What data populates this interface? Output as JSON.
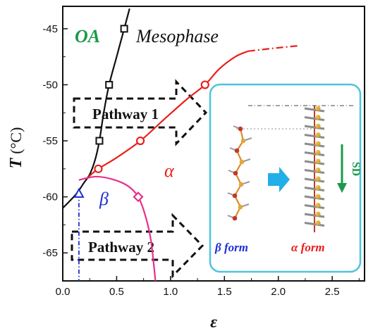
{
  "chart_data": {
    "type": "line",
    "xlabel": "ε",
    "ylabel": "T",
    "ylabel_unit": "(°C)",
    "xlim": [
      0,
      2.8
    ],
    "ylim": [
      -67.5,
      -43
    ],
    "x_ticks": [
      0.0,
      0.5,
      1.0,
      1.5,
      2.0,
      2.5
    ],
    "x_tick_labels": [
      "0.0",
      "0.5",
      "1.0",
      "1.5",
      "2.0",
      "2.5"
    ],
    "y_ticks": [
      -45,
      -50,
      -55,
      -60,
      -65
    ],
    "y_tick_labels": [
      "-45",
      "-50",
      "-55",
      "-60",
      "-65"
    ],
    "regions": {
      "oa": "OA",
      "mesophase": "Mesophase",
      "alpha": "α",
      "beta": "β"
    },
    "pathways": [
      "Pathway 1",
      "Pathway 2"
    ],
    "colors": {
      "black_curve": "#111111",
      "red_curve": "#e8201c",
      "pink_curve": "#e82f8a",
      "blue_marker": "#1f2fd8",
      "oa": "#1a9a4a",
      "inset_border": "#4fc3dd",
      "arrow_cyan": "#22aee8",
      "sd_green": "#1a9a4a"
    },
    "series": [
      {
        "color": "#111111",
        "marker": "square",
        "x": [
          0.34,
          0.43,
          0.57
        ],
        "y": [
          -55.0,
          -50.0,
          -45.0
        ],
        "curve": [
          [
            0.0,
            -61.0
          ],
          [
            0.12,
            -59.8
          ],
          [
            0.2,
            -58.7
          ],
          [
            0.25,
            -58.0
          ],
          [
            0.3,
            -56.7
          ],
          [
            0.34,
            -55.0
          ],
          [
            0.38,
            -52.5
          ],
          [
            0.43,
            -50.0
          ],
          [
            0.5,
            -47.5
          ],
          [
            0.57,
            -45.0
          ],
          [
            0.62,
            -43.2
          ]
        ]
      },
      {
        "color": "#e8201c",
        "marker": "circle",
        "x": [
          0.33,
          0.72,
          1.32
        ],
        "y": [
          -57.5,
          -55.0,
          -50.0
        ],
        "curve": [
          [
            0.24,
            -58.2
          ],
          [
            0.33,
            -57.5
          ],
          [
            0.5,
            -56.5
          ],
          [
            0.72,
            -55.0
          ],
          [
            0.95,
            -53.0
          ],
          [
            1.15,
            -51.3
          ],
          [
            1.32,
            -50.0
          ],
          [
            1.45,
            -48.6
          ],
          [
            1.6,
            -47.5
          ],
          [
            1.72,
            -47.0
          ]
        ],
        "dashed_extension": [
          [
            1.72,
            -47.0
          ],
          [
            1.95,
            -46.75
          ],
          [
            2.2,
            -46.5
          ]
        ]
      },
      {
        "color": "#e82f8a",
        "marker": "diamond",
        "x": [
          0.7
        ],
        "y": [
          -60.0
        ],
        "curve": [
          [
            0.15,
            -58.5
          ],
          [
            0.3,
            -58.2
          ],
          [
            0.45,
            -58.4
          ],
          [
            0.6,
            -59.0
          ],
          [
            0.7,
            -60.0
          ],
          [
            0.77,
            -61.8
          ],
          [
            0.82,
            -64.0
          ],
          [
            0.86,
            -67.5
          ]
        ]
      },
      {
        "color": "#1f2fd8",
        "marker": "triangle",
        "x": [
          0.15
        ],
        "y": [
          -59.7
        ],
        "curve": [
          [
            0.15,
            -59.7
          ],
          [
            0.15,
            -67.5
          ]
        ]
      }
    ],
    "inset": {
      "left_label": "β form",
      "right_label": "α form",
      "sd_label": "SD"
    }
  }
}
